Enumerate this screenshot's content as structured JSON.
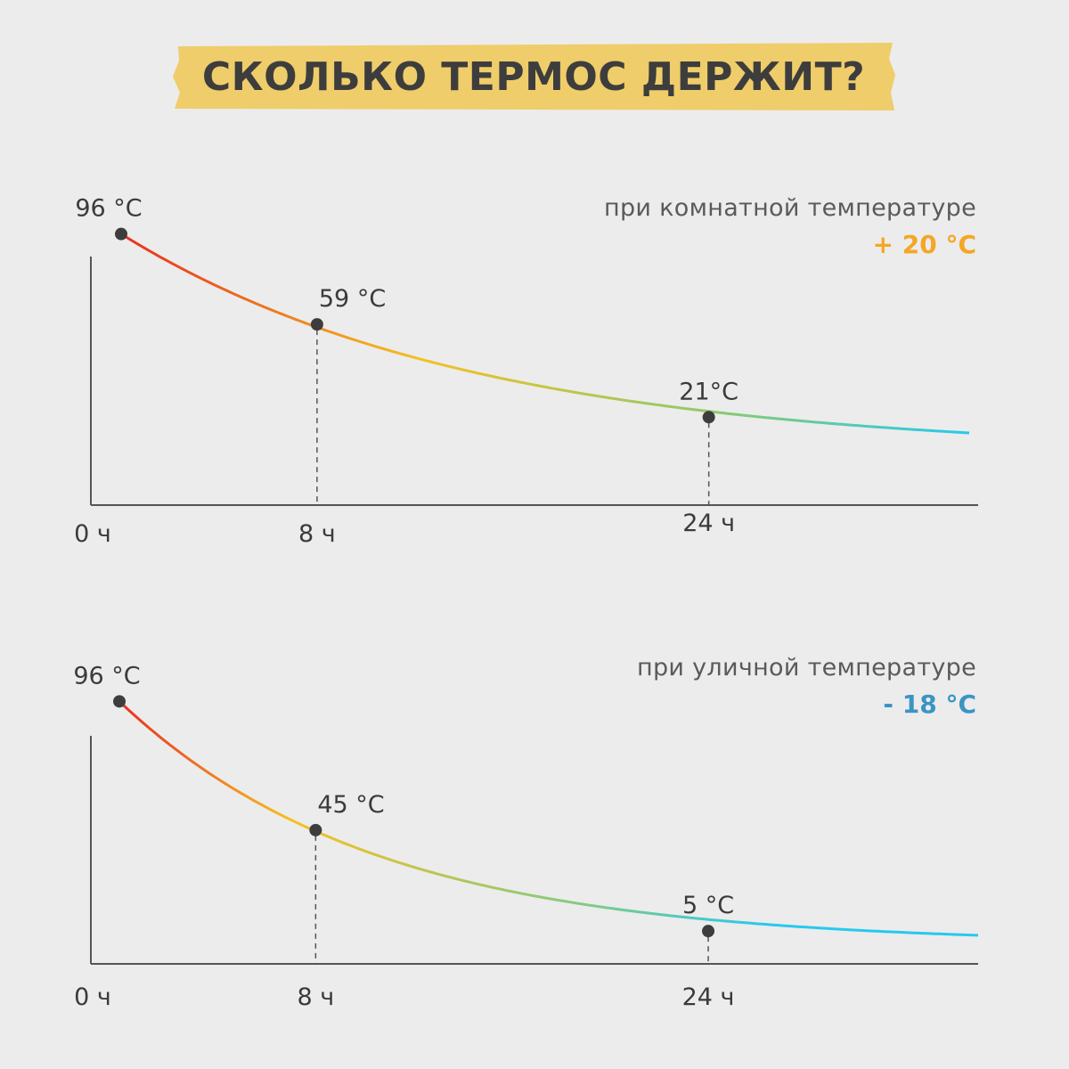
{
  "title": "СКОЛЬКО ТЕРМОС ДЕРЖИТ?",
  "colors": {
    "background": "#ececec",
    "banner": "#efcd6a",
    "text": "#3b3b3b",
    "room_accent": "#f5a623",
    "street_accent": "#3a94c4",
    "curve_hot": "#e8301f",
    "curve_warm": "#f4c024",
    "curve_cool": "#26c9ee"
  },
  "chart_data": [
    {
      "type": "line",
      "condition_label": "при комнатной температуре",
      "condition_value": "+ 20 °C",
      "condition_color": "#f5a623",
      "x_unit": "ч",
      "y_unit": "°C",
      "x_ticks": [
        {
          "x": 0,
          "label": "0 ч"
        },
        {
          "x": 8,
          "label": "8 ч"
        },
        {
          "x": 24,
          "label": "24 ч"
        }
      ],
      "points": [
        {
          "x": 0,
          "y": 96,
          "label": "96 °C"
        },
        {
          "x": 8,
          "y": 59,
          "label": "59 °C"
        },
        {
          "x": 24,
          "y": 21,
          "label": "21°C"
        }
      ],
      "xlim": [
        0,
        35
      ],
      "ylim": [
        -15,
        105
      ],
      "decay": {
        "ambient": 6.5,
        "k": 0.0695
      }
    },
    {
      "type": "line",
      "condition_label": "при уличной температуре",
      "condition_value": "- 18 °C",
      "condition_color": "#3a94c4",
      "x_unit": "ч",
      "y_unit": "°C",
      "x_ticks": [
        {
          "x": 0,
          "label": "0 ч"
        },
        {
          "x": 8,
          "label": "8 ч"
        },
        {
          "x": 24,
          "label": "24 ч"
        }
      ],
      "points": [
        {
          "x": 0,
          "y": 96,
          "label": "96 °C"
        },
        {
          "x": 8,
          "y": 45,
          "label": "45 °C"
        },
        {
          "x": 24,
          "y": 5,
          "label": "5 °C"
        }
      ],
      "xlim": [
        0,
        35
      ],
      "ylim": [
        -8,
        100
      ],
      "decay": {
        "ambient": 0,
        "k": 0.096
      }
    }
  ]
}
